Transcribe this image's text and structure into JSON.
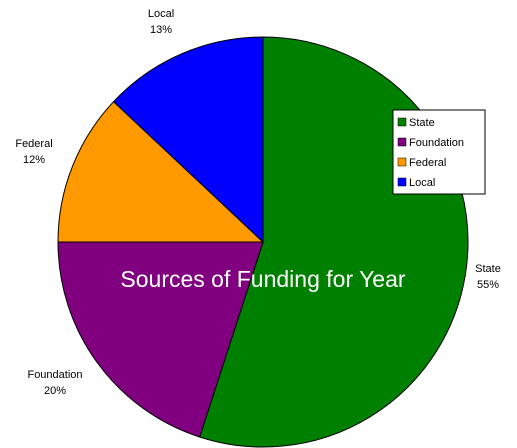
{
  "chart_data": {
    "type": "pie",
    "title": "Sources of Funding for Year",
    "categories": [
      "State",
      "Foundation",
      "Federal",
      "Local"
    ],
    "values": [
      55,
      20,
      12,
      13
    ],
    "value_labels": [
      "55%",
      "20%",
      "12%",
      "13%"
    ],
    "colors": [
      "#008000",
      "#800080",
      "#ff9900",
      "#0000ff"
    ],
    "legend": {
      "placement": "right",
      "entries": [
        "State",
        "Foundation",
        "Federal",
        "Local"
      ]
    }
  }
}
